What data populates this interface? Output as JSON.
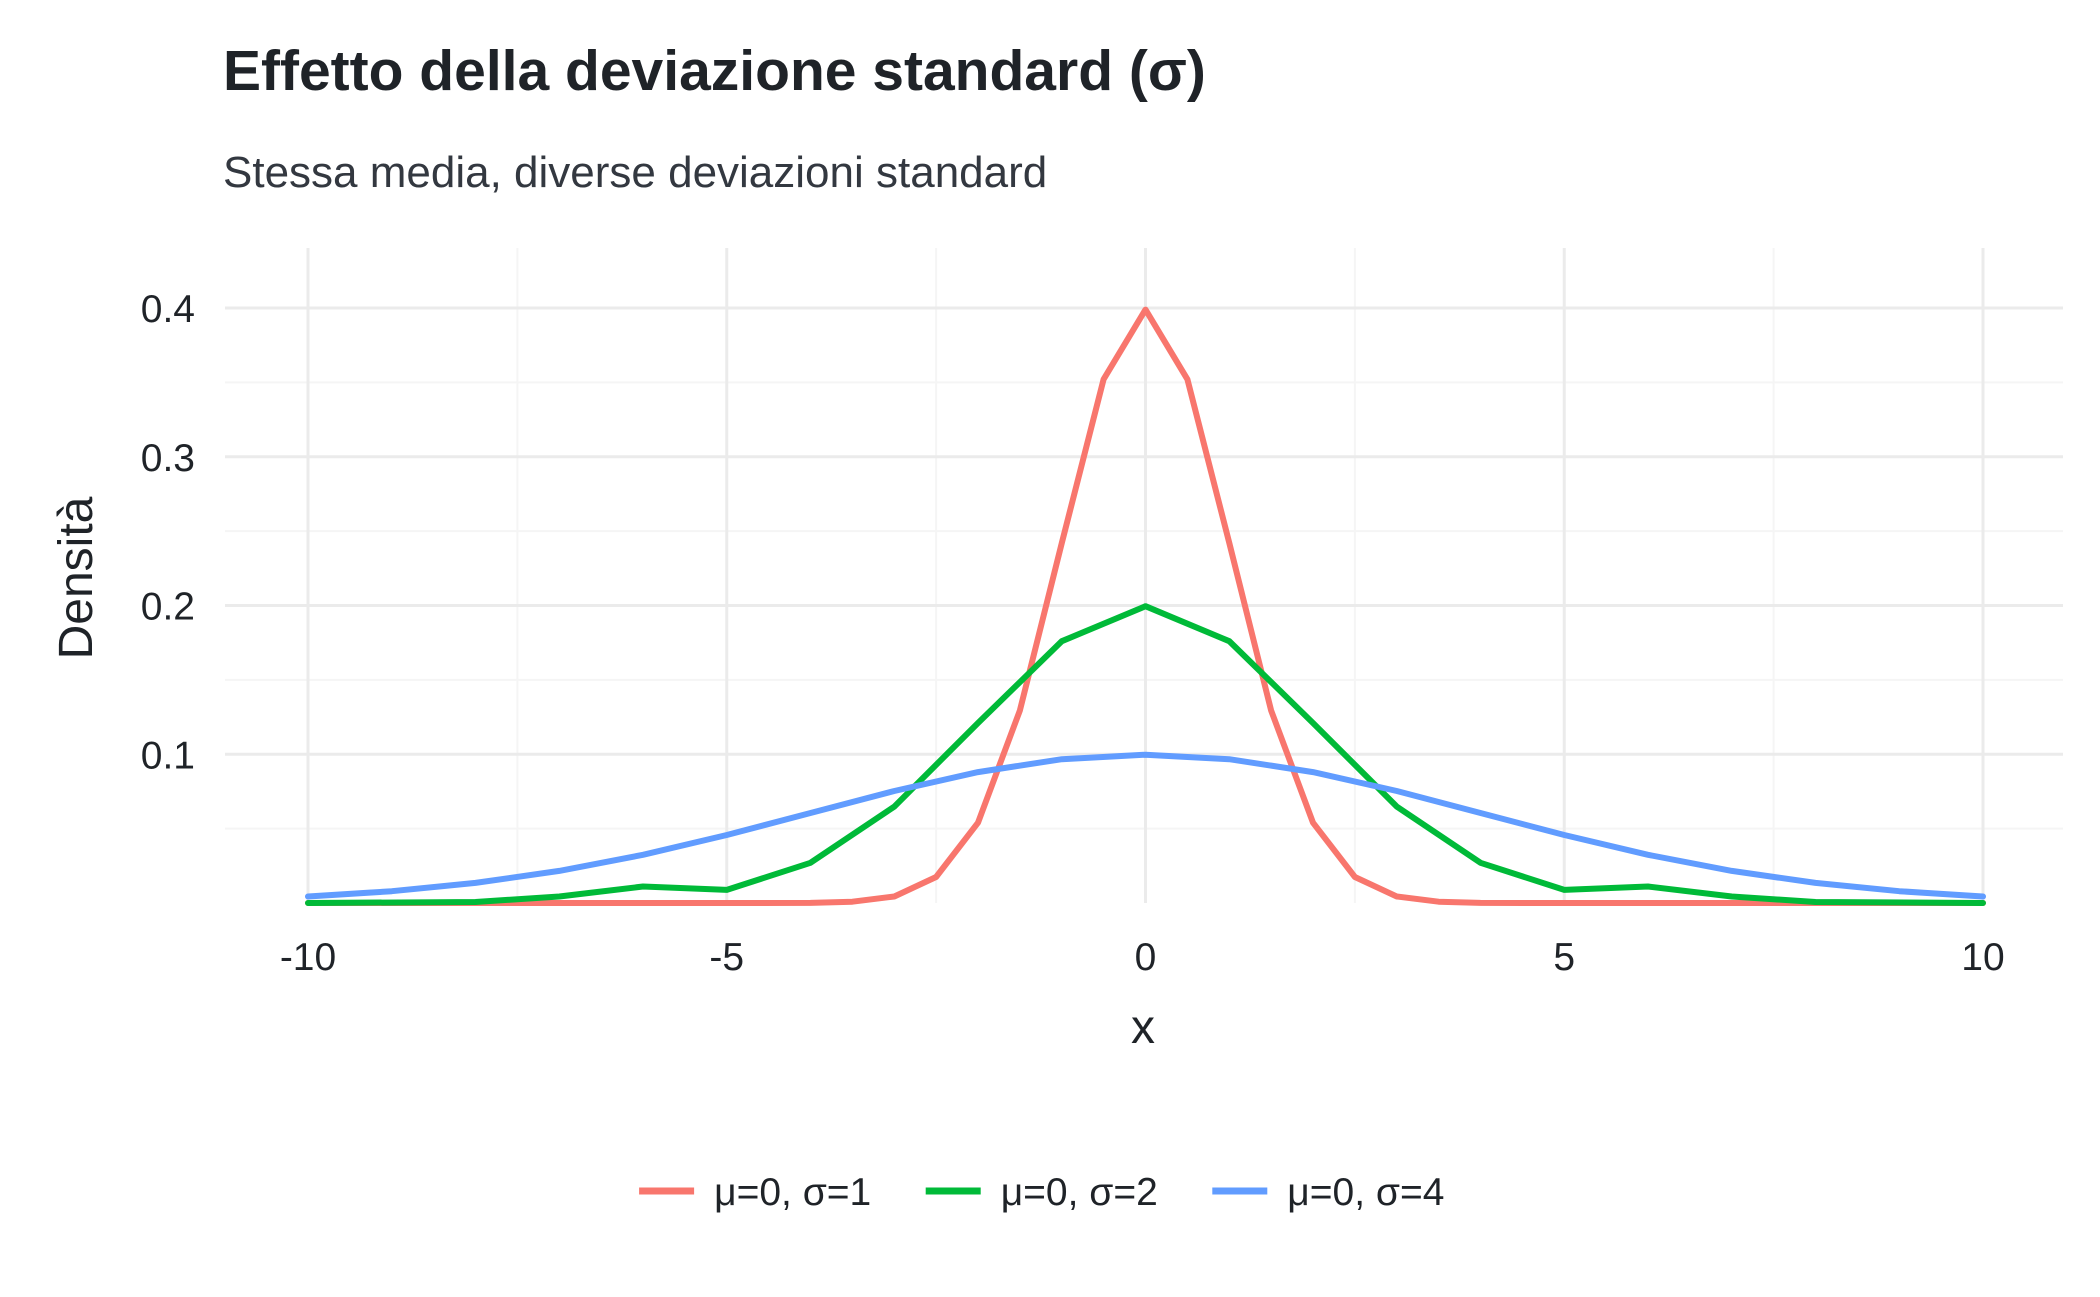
{
  "chart_data": {
    "type": "line",
    "title": "Effetto della deviazione standard (σ)",
    "subtitle": "Stessa media, diverse deviazioni standard",
    "xlabel": "x",
    "ylabel": "Densità",
    "xlim": [
      -10,
      10
    ],
    "ylim": [
      0,
      0.4
    ],
    "x_ticks": [
      -10,
      -5,
      0,
      5,
      10
    ],
    "x_tick_labels": [
      "-10",
      "-5",
      "0",
      "5",
      "10"
    ],
    "y_ticks": [
      0.1,
      0.2,
      0.3,
      0.4
    ],
    "y_tick_labels": [
      "0.1",
      "0.2",
      "0.3",
      "0.4"
    ],
    "grid": true,
    "legend_position": "bottom",
    "series": [
      {
        "name": "μ=0, σ=1",
        "color": "#F8766D",
        "x": [
          -10,
          -5,
          -4,
          -3.5,
          -3,
          -2.5,
          -2,
          -1.5,
          -1,
          -0.5,
          0,
          0.5,
          1,
          1.5,
          2,
          2.5,
          3,
          3.5,
          4,
          5,
          10
        ],
        "y": [
          0,
          0,
          0.0001,
          0.0009,
          0.0044,
          0.0175,
          0.054,
          0.1295,
          0.242,
          0.3521,
          0.3989,
          0.3521,
          0.242,
          0.1295,
          0.054,
          0.0175,
          0.0044,
          0.0009,
          0.0001,
          0,
          0
        ]
      },
      {
        "name": "μ=0, σ=2",
        "color": "#00BA38",
        "x": [
          -10,
          -8,
          -7,
          -6,
          -5,
          -4,
          -3,
          -2,
          -1,
          0,
          1,
          2,
          3,
          4,
          5,
          6,
          7,
          8,
          10
        ],
        "y": [
          0,
          0.0007,
          0.0044,
          0.0111,
          0.0088,
          0.027,
          0.0648,
          0.121,
          0.176,
          0.1995,
          0.176,
          0.121,
          0.0648,
          0.027,
          0.0088,
          0.0111,
          0.0044,
          0.0007,
          0
        ]
      },
      {
        "name": "μ=0, σ=4",
        "color": "#619CFF",
        "x": [
          -10,
          -9,
          -8,
          -7,
          -6,
          -5,
          -4,
          -3,
          -2,
          -1,
          0,
          1,
          2,
          3,
          4,
          5,
          6,
          7,
          8,
          9,
          10
        ],
        "y": [
          0.0044,
          0.0079,
          0.0135,
          0.0216,
          0.0324,
          0.0457,
          0.0605,
          0.0753,
          0.088,
          0.0967,
          0.0997,
          0.0967,
          0.088,
          0.0753,
          0.0605,
          0.0457,
          0.0324,
          0.0216,
          0.0135,
          0.0079,
          0.0044
        ]
      }
    ]
  },
  "colors": {
    "grid_major": "#ebebeb",
    "grid_minor": "#f5f5f5",
    "text": "#1f2328"
  }
}
